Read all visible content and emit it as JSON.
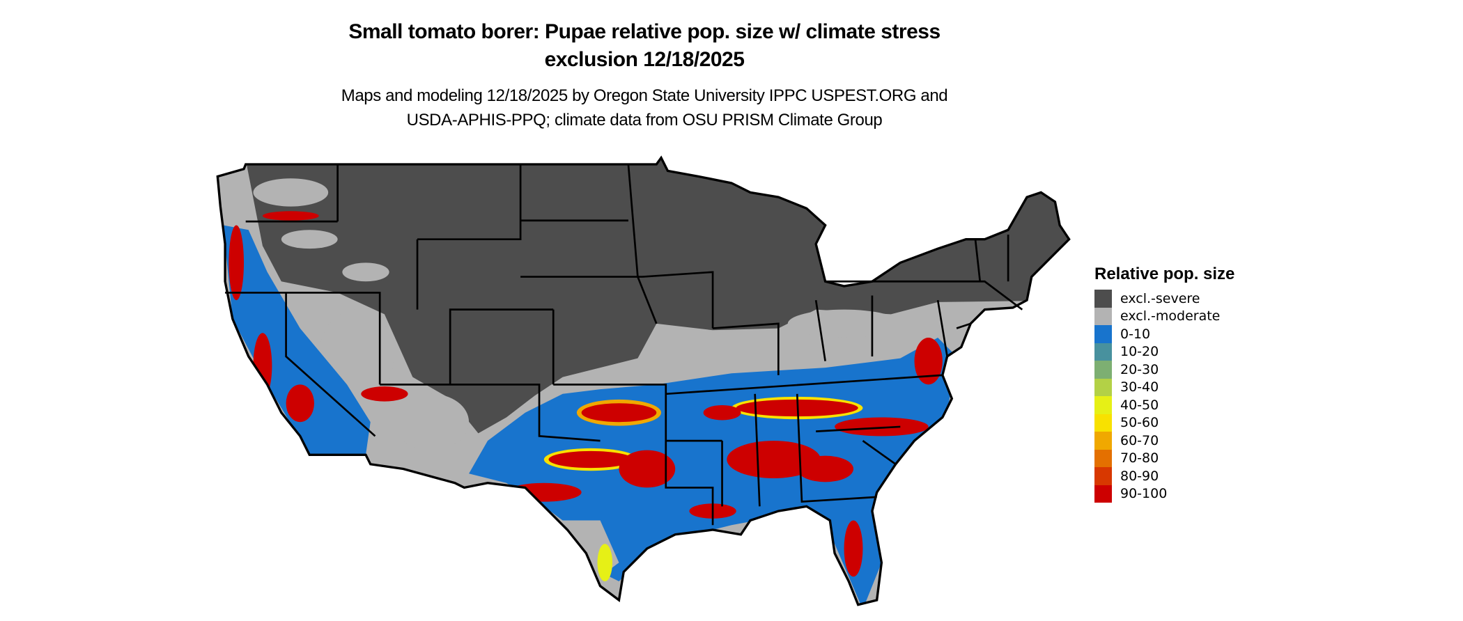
{
  "title_line1": "Small tomato borer: Pupae relative pop. size w/ climate stress",
  "title_line2": "exclusion 12/18/2025",
  "subtitle_line1": "Maps and modeling 12/18/2025 by Oregon State University IPPC USPEST.ORG and",
  "subtitle_line2": "USDA-APHIS-PPQ; climate data from OSU PRISM Climate Group",
  "legend": {
    "title": "Relative pop. size",
    "items": [
      {
        "label": "excl.-severe",
        "color": "#4d4d4d"
      },
      {
        "label": "excl.-moderate",
        "color": "#b3b3b3"
      },
      {
        "label": "0-10",
        "color": "#1874cd"
      },
      {
        "label": "10-20",
        "color": "#48919e"
      },
      {
        "label": "20-30",
        "color": "#7daf72"
      },
      {
        "label": "30-40",
        "color": "#b3d146"
      },
      {
        "label": "40-50",
        "color": "#e6f016"
      },
      {
        "label": "50-60",
        "color": "#f8e100"
      },
      {
        "label": "60-70",
        "color": "#f0a800"
      },
      {
        "label": "70-80",
        "color": "#e47000"
      },
      {
        "label": "80-90",
        "color": "#d83800"
      },
      {
        "label": "90-100",
        "color": "#cd0000"
      }
    ]
  }
}
